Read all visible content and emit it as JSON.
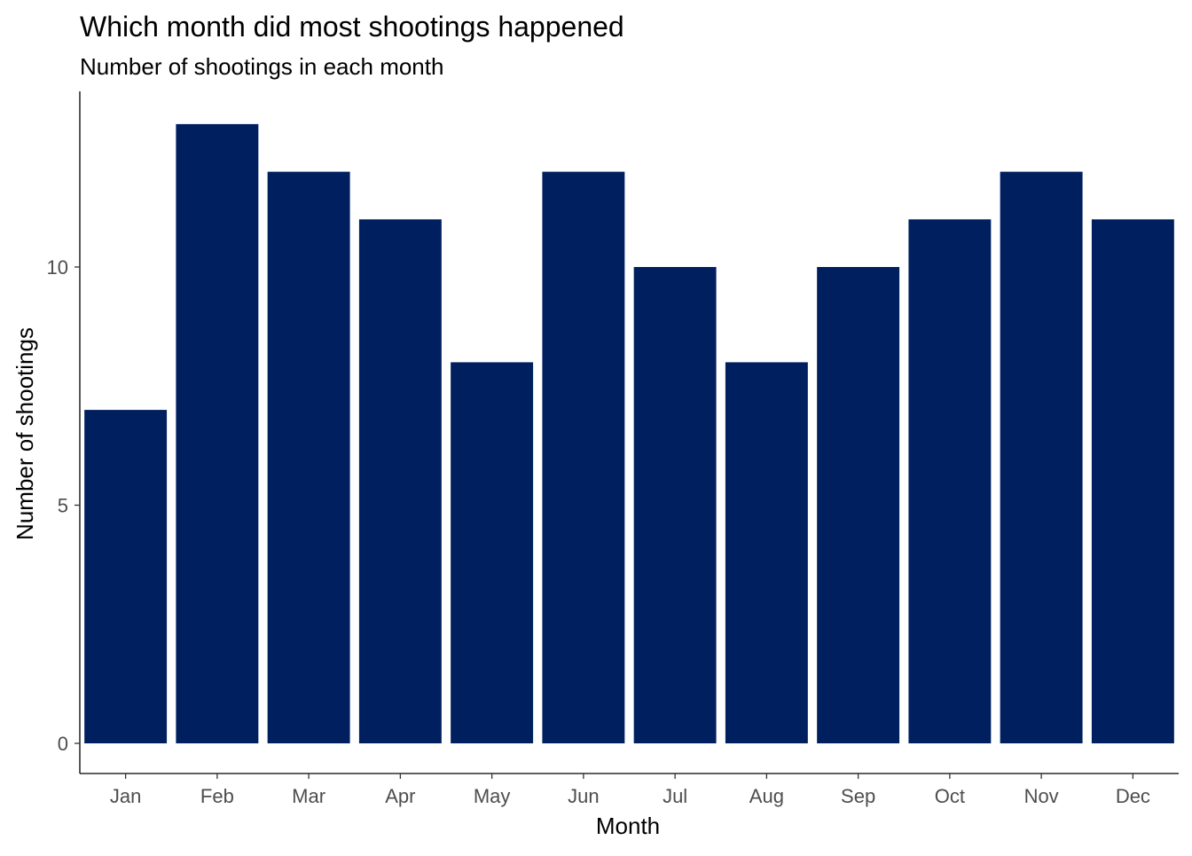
{
  "chart_data": {
    "type": "bar",
    "title": "Which month did most shootings happened",
    "subtitle": "Number of shootings in each month",
    "xlabel": "Month",
    "ylabel": "Number of shootings",
    "categories": [
      "Jan",
      "Feb",
      "Mar",
      "Apr",
      "May",
      "Jun",
      "Jul",
      "Aug",
      "Sep",
      "Oct",
      "Nov",
      "Dec"
    ],
    "values": [
      7,
      13,
      12,
      11,
      8,
      12,
      10,
      8,
      10,
      11,
      12,
      11
    ],
    "y_ticks": [
      0,
      5,
      10
    ],
    "ylim": [
      0,
      13.65
    ],
    "grid": false,
    "legend": "none",
    "bar_color": "#001F5F"
  }
}
